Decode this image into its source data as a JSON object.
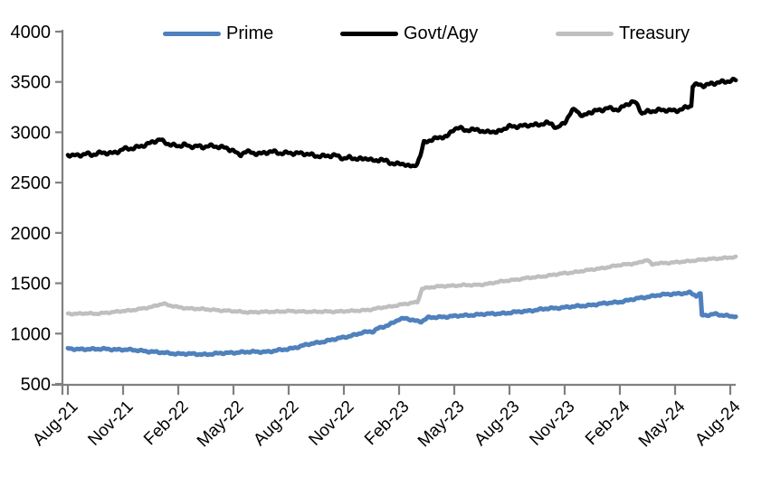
{
  "chart_data": {
    "type": "line",
    "title": "",
    "legend": [
      {
        "label": "Prime",
        "color": "#4F81BD"
      },
      {
        "label": "Govt/Agy",
        "color": "#000000"
      },
      {
        "label": "Treasury",
        "color": "#BFBFBF"
      }
    ],
    "x_axis": {
      "tick_labels": [
        "Aug-21",
        "Nov-21",
        "Feb-22",
        "May-22",
        "Aug-22",
        "Nov-22",
        "Feb-23",
        "May-23",
        "Aug-23",
        "Nov-23",
        "Feb-24",
        "May-24",
        "Aug-24"
      ],
      "months_per_tick": 3,
      "label_rotation_deg": -45
    },
    "y_axis": {
      "min": 500,
      "max": 4000,
      "ticks": [
        500,
        1000,
        1500,
        2000,
        2500,
        3000,
        3500,
        4000
      ]
    },
    "axis_color": "#808080",
    "grid": "off",
    "legend_position": "top",
    "series": [
      {
        "name": "Prime",
        "color": "#4F81BD",
        "points": [
          [
            0,
            850
          ],
          [
            0.5,
            843
          ],
          [
            1,
            848
          ],
          [
            1.5,
            845
          ],
          [
            2,
            846
          ],
          [
            3,
            841
          ],
          [
            4,
            831
          ],
          [
            5,
            812
          ],
          [
            6,
            800
          ],
          [
            7,
            796
          ],
          [
            7.5,
            794
          ],
          [
            8,
            800
          ],
          [
            9,
            812
          ],
          [
            10,
            818
          ],
          [
            11,
            822
          ],
          [
            12,
            848
          ],
          [
            12.5,
            868
          ],
          [
            13,
            890
          ],
          [
            14,
            926
          ],
          [
            15,
            962
          ],
          [
            15.5,
            985
          ],
          [
            16,
            1010
          ],
          [
            16.6,
            1020
          ],
          [
            16.8,
            1048
          ],
          [
            17,
            1062
          ],
          [
            17.5,
            1090
          ],
          [
            18,
            1140
          ],
          [
            18.4,
            1152
          ],
          [
            18.9,
            1128
          ],
          [
            19.2,
            1118
          ],
          [
            19.6,
            1158
          ],
          [
            20,
            1163
          ],
          [
            20.5,
            1168
          ],
          [
            21,
            1172
          ],
          [
            21.5,
            1180
          ],
          [
            22,
            1186
          ],
          [
            23,
            1196
          ],
          [
            24,
            1206
          ],
          [
            25,
            1226
          ],
          [
            26,
            1246
          ],
          [
            27,
            1262
          ],
          [
            27.5,
            1268
          ],
          [
            28,
            1276
          ],
          [
            29,
            1296
          ],
          [
            30,
            1316
          ],
          [
            30.5,
            1332
          ],
          [
            31,
            1350
          ],
          [
            31.5,
            1366
          ],
          [
            32,
            1380
          ],
          [
            32.5,
            1388
          ],
          [
            33,
            1396
          ],
          [
            33.5,
            1402
          ],
          [
            33.8,
            1406
          ],
          [
            34,
            1388
          ],
          [
            34.15,
            1372
          ],
          [
            34.3,
            1392
          ],
          [
            34.38,
            1390
          ],
          [
            34.46,
            1182
          ],
          [
            34.9,
            1188
          ],
          [
            35.2,
            1196
          ],
          [
            35.6,
            1178
          ],
          [
            36,
            1174
          ],
          [
            36.3,
            1172
          ]
        ]
      },
      {
        "name": "Govt/Agy",
        "color": "#000000",
        "points": [
          [
            0,
            2775
          ],
          [
            0.3,
            2768
          ],
          [
            0.7,
            2780
          ],
          [
            1,
            2788
          ],
          [
            1.3,
            2772
          ],
          [
            1.7,
            2790
          ],
          [
            2,
            2800
          ],
          [
            2.5,
            2795
          ],
          [
            3,
            2828
          ],
          [
            3.5,
            2840
          ],
          [
            4,
            2868
          ],
          [
            4.5,
            2890
          ],
          [
            5,
            2928
          ],
          [
            5.2,
            2905
          ],
          [
            5.5,
            2888
          ],
          [
            5.8,
            2870
          ],
          [
            6,
            2858
          ],
          [
            6.3,
            2878
          ],
          [
            6.6,
            2852
          ],
          [
            7,
            2872
          ],
          [
            7.3,
            2850
          ],
          [
            7.6,
            2868
          ],
          [
            8,
            2850
          ],
          [
            8.3,
            2860
          ],
          [
            8.6,
            2842
          ],
          [
            9,
            2826
          ],
          [
            9.2,
            2780
          ],
          [
            9.4,
            2770
          ],
          [
            9.6,
            2806
          ],
          [
            10,
            2798
          ],
          [
            10.5,
            2790
          ],
          [
            11,
            2806
          ],
          [
            11.5,
            2792
          ],
          [
            12,
            2800
          ],
          [
            12.5,
            2788
          ],
          [
            13,
            2782
          ],
          [
            13.5,
            2770
          ],
          [
            14,
            2762
          ],
          [
            14.5,
            2768
          ],
          [
            15,
            2744
          ],
          [
            15.3,
            2752
          ],
          [
            15.7,
            2736
          ],
          [
            16,
            2726
          ],
          [
            16.3,
            2744
          ],
          [
            16.7,
            2712
          ],
          [
            17,
            2742
          ],
          [
            17.2,
            2718
          ],
          [
            17.5,
            2692
          ],
          [
            18,
            2682
          ],
          [
            18.3,
            2692
          ],
          [
            18.6,
            2662
          ],
          [
            18.8,
            2658
          ],
          [
            19,
            2698
          ],
          [
            19.15,
            2760
          ],
          [
            19.35,
            2892
          ],
          [
            19.6,
            2918
          ],
          [
            20,
            2942
          ],
          [
            20.3,
            2958
          ],
          [
            20.6,
            2950
          ],
          [
            21,
            3035
          ],
          [
            21.3,
            3042
          ],
          [
            21.6,
            3028
          ],
          [
            22,
            3022
          ],
          [
            22.3,
            3028
          ],
          [
            22.6,
            2992
          ],
          [
            23,
            3018
          ],
          [
            23.3,
            2998
          ],
          [
            23.6,
            3030
          ],
          [
            24,
            3052
          ],
          [
            24.5,
            3060
          ],
          [
            25,
            3076
          ],
          [
            25.5,
            3068
          ],
          [
            26,
            3090
          ],
          [
            26.3,
            3088
          ],
          [
            26.6,
            3042
          ],
          [
            27,
            3098
          ],
          [
            27.2,
            3150
          ],
          [
            27.4,
            3205
          ],
          [
            27.6,
            3228
          ],
          [
            27.8,
            3192
          ],
          [
            28,
            3158
          ],
          [
            28.3,
            3198
          ],
          [
            28.6,
            3208
          ],
          [
            29,
            3216
          ],
          [
            29.3,
            3242
          ],
          [
            29.6,
            3236
          ],
          [
            30,
            3228
          ],
          [
            30.3,
            3268
          ],
          [
            30.6,
            3292
          ],
          [
            30.8,
            3298
          ],
          [
            31,
            3262
          ],
          [
            31.2,
            3192
          ],
          [
            31.5,
            3208
          ],
          [
            32,
            3212
          ],
          [
            32.5,
            3222
          ],
          [
            33,
            3218
          ],
          [
            33.4,
            3228
          ],
          [
            33.8,
            3258
          ],
          [
            33.88,
            3262
          ],
          [
            33.96,
            3462
          ],
          [
            34.3,
            3478
          ],
          [
            34.6,
            3468
          ],
          [
            35,
            3482
          ],
          [
            35.4,
            3492
          ],
          [
            35.7,
            3502
          ],
          [
            36,
            3516
          ],
          [
            36.3,
            3522
          ]
        ]
      },
      {
        "name": "Treasury",
        "color": "#BFBFBF",
        "points": [
          [
            0,
            1200
          ],
          [
            0.5,
            1196
          ],
          [
            1,
            1200
          ],
          [
            1.5,
            1198
          ],
          [
            2,
            1206
          ],
          [
            2.5,
            1212
          ],
          [
            3,
            1226
          ],
          [
            3.5,
            1234
          ],
          [
            4,
            1246
          ],
          [
            4.5,
            1262
          ],
          [
            5,
            1292
          ],
          [
            5.2,
            1298
          ],
          [
            5.5,
            1280
          ],
          [
            6,
            1262
          ],
          [
            6.5,
            1252
          ],
          [
            7,
            1246
          ],
          [
            7.5,
            1240
          ],
          [
            8,
            1236
          ],
          [
            8.5,
            1228
          ],
          [
            9,
            1222
          ],
          [
            9.5,
            1216
          ],
          [
            10,
            1212
          ],
          [
            10.5,
            1214
          ],
          [
            11,
            1218
          ],
          [
            11.5,
            1220
          ],
          [
            12,
            1222
          ],
          [
            12.5,
            1220
          ],
          [
            13,
            1220
          ],
          [
            13.5,
            1216
          ],
          [
            14,
            1218
          ],
          [
            14.5,
            1220
          ],
          [
            15,
            1222
          ],
          [
            15.5,
            1224
          ],
          [
            16,
            1232
          ],
          [
            16.5,
            1240
          ],
          [
            17,
            1256
          ],
          [
            17.5,
            1268
          ],
          [
            18,
            1286
          ],
          [
            18.5,
            1298
          ],
          [
            18.85,
            1308
          ],
          [
            19,
            1312
          ],
          [
            19.25,
            1448
          ],
          [
            19.6,
            1458
          ],
          [
            20,
            1465
          ],
          [
            20.5,
            1472
          ],
          [
            21,
            1478
          ],
          [
            21.5,
            1482
          ],
          [
            22,
            1480
          ],
          [
            22.5,
            1488
          ],
          [
            23,
            1500
          ],
          [
            23.5,
            1515
          ],
          [
            24,
            1530
          ],
          [
            24.5,
            1540
          ],
          [
            25,
            1552
          ],
          [
            25.5,
            1562
          ],
          [
            26,
            1574
          ],
          [
            26.5,
            1586
          ],
          [
            27,
            1600
          ],
          [
            27.5,
            1610
          ],
          [
            28,
            1622
          ],
          [
            28.5,
            1636
          ],
          [
            29,
            1650
          ],
          [
            29.5,
            1665
          ],
          [
            30,
            1680
          ],
          [
            30.5,
            1692
          ],
          [
            31,
            1702
          ],
          [
            31.3,
            1722
          ],
          [
            31.5,
            1730
          ],
          [
            31.75,
            1684
          ],
          [
            32,
            1700
          ],
          [
            32.5,
            1702
          ],
          [
            33,
            1706
          ],
          [
            33.5,
            1716
          ],
          [
            34,
            1726
          ],
          [
            34.5,
            1734
          ],
          [
            35,
            1742
          ],
          [
            35.5,
            1750
          ],
          [
            36,
            1756
          ],
          [
            36.3,
            1758
          ]
        ]
      }
    ]
  }
}
